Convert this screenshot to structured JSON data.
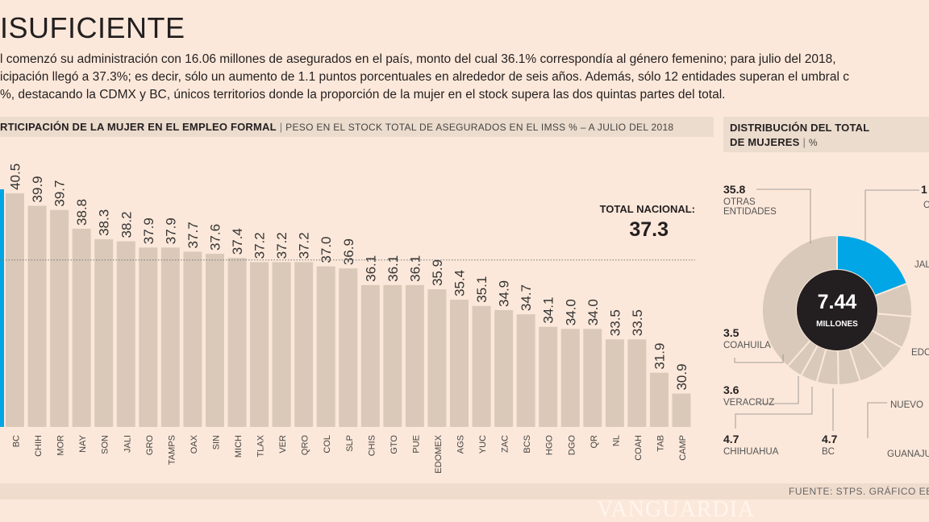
{
  "title": "ISUFICIENTE",
  "intro": [
    "l comenzó su administración con 16.06 millones de asegurados en el país, monto del cual 36.1% correspondía al género femenino; para julio del 2018,",
    "icipación llegó a 37.3%; es decir, sólo un aumento de 1.1 puntos porcentuales en alrededor de seis años. Además, sólo 12 entidades superan el umbral c",
    "%, destacando la CDMX y BC, únicos territorios donde la proporción de la mujer en el stock supera las dos quintas partes del total."
  ],
  "bar_header": {
    "title": "RTICIPACIÓN DE LA MUJER EN EL EMPLEO FORMAL",
    "subtitle": "PESO EN EL STOCK TOTAL DE ASEGURADOS EN EL IMSS % – A JULIO DEL 2018"
  },
  "donut_header": {
    "title_line1": "DISTRIBUCIÓN DEL TOTAL",
    "title_line2": "DE MUJERES",
    "unit": "%"
  },
  "source": "FUENTE: STPS. GRÁFICO EE: STA",
  "watermark": "VANGUARDIA",
  "chart_data": [
    {
      "type": "bar",
      "categories": [
        "BC",
        "CHIH",
        "MOR",
        "NAY",
        "SON",
        "JALI",
        "GRO",
        "TAMPS",
        "OAX",
        "SIN",
        "MICH",
        "TLAX",
        "VER",
        "QRO",
        "COL",
        "SLP",
        "CHIS",
        "GTO",
        "PUE",
        "EDOMEX",
        "AGS",
        "YUC",
        "ZAC",
        "BCS",
        "HGO",
        "DGO",
        "QR",
        "NL",
        "COAH",
        "TAB",
        "CAMP"
      ],
      "values": [
        40.5,
        39.9,
        39.7,
        38.8,
        38.3,
        38.2,
        37.9,
        37.9,
        37.7,
        37.6,
        37.4,
        37.2,
        37.2,
        37.2,
        37.0,
        36.9,
        36.1,
        36.1,
        36.1,
        35.9,
        35.4,
        35.1,
        34.9,
        34.7,
        34.1,
        34.0,
        34.0,
        33.5,
        33.5,
        31.9,
        30.9
      ],
      "highlight_color": "#00a6e6",
      "bar_color": "#dac9b9",
      "reference_line": {
        "label": "TOTAL NACIONAL:",
        "value": 37.3
      },
      "ylim": [
        29.3,
        41.5
      ]
    },
    {
      "type": "pie",
      "center_value": "7.44",
      "center_label": "MILLONES",
      "highlight_color": "#00a6e6",
      "slices_visible": [
        {
          "label": "OTRAS ENTIDADES",
          "value": 35.8
        },
        {
          "label": "COAHUILA",
          "value": 3.5
        },
        {
          "label": "VERACRUZ",
          "value": 3.6
        },
        {
          "label": "CHIHUAHUA",
          "value": 4.7
        },
        {
          "label": "BC",
          "value": 4.7
        }
      ],
      "slices_cropped": [
        {
          "label": "C",
          "value_text": "1"
        },
        {
          "label": "JAL"
        },
        {
          "label": "EDO"
        },
        {
          "label": "NUEVO"
        },
        {
          "label": "GUANAJU"
        }
      ]
    }
  ]
}
